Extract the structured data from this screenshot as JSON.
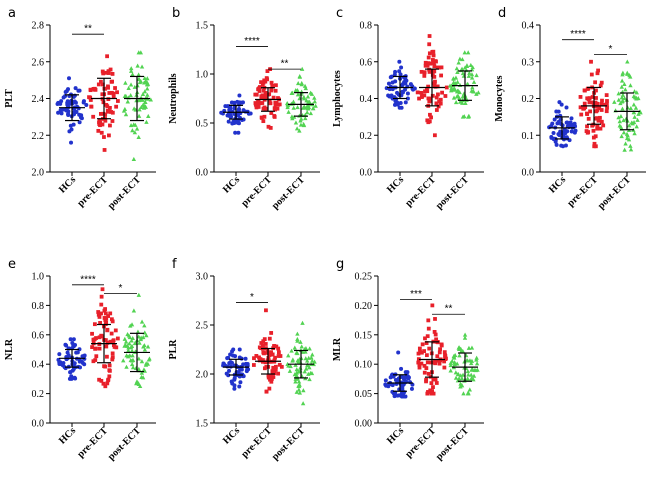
{
  "colors": {
    "HCs": "#2233cc",
    "pre-ECT": "#e8202a",
    "post-ECT": "#52d352"
  },
  "chart_data": [
    {
      "type": "scatter",
      "letter": "a",
      "ylabel": "PLT",
      "categories": [
        "HCs",
        "pre-ECT",
        "post-ECT"
      ],
      "ylim": [
        2.0,
        2.8
      ],
      "yticks": [
        2.0,
        2.2,
        2.4,
        2.6,
        2.8
      ],
      "yticklabels": [
        "2.0",
        "2.2",
        "2.4",
        "2.6",
        "2.8"
      ],
      "groups": [
        {
          "name": "HCs",
          "mean": 2.35,
          "sd": 0.07,
          "min": 2.16,
          "max": 2.51,
          "n": 60
        },
        {
          "name": "pre-ECT",
          "mean": 2.4,
          "sd": 0.11,
          "min": 2.12,
          "max": 2.63,
          "n": 70
        },
        {
          "name": "post-ECT",
          "mean": 2.4,
          "sd": 0.12,
          "min": 2.07,
          "max": 2.65,
          "n": 70
        }
      ],
      "significance": [
        {
          "from": 0,
          "to": 1,
          "label": "**",
          "y": 2.75
        }
      ]
    },
    {
      "type": "scatter",
      "letter": "b",
      "ylabel": "Neutrophils",
      "categories": [
        "HCs",
        "pre-ECT",
        "post-ECT"
      ],
      "ylim": [
        0.0,
        1.5
      ],
      "yticks": [
        0.0,
        0.5,
        1.0,
        1.5
      ],
      "yticklabels": [
        "0.0",
        "0.5",
        "1.0",
        "1.5"
      ],
      "groups": [
        {
          "name": "HCs",
          "mean": 0.61,
          "sd": 0.07,
          "min": 0.4,
          "max": 0.78,
          "n": 60
        },
        {
          "name": "pre-ECT",
          "mean": 0.74,
          "sd": 0.12,
          "min": 0.45,
          "max": 1.05,
          "n": 70
        },
        {
          "name": "post-ECT",
          "mean": 0.69,
          "sd": 0.12,
          "min": 0.42,
          "max": 1.05,
          "n": 70
        }
      ],
      "significance": [
        {
          "from": 0,
          "to": 1,
          "label": "****",
          "y": 1.28
        },
        {
          "from": 1,
          "to": 2,
          "label": "**",
          "y": 1.05
        }
      ]
    },
    {
      "type": "scatter",
      "letter": "c",
      "ylabel": "Lymphocytes",
      "categories": [
        "HCs",
        "pre-ECT",
        "post-ECT"
      ],
      "ylim": [
        0.0,
        0.8
      ],
      "yticks": [
        0.0,
        0.2,
        0.4,
        0.6,
        0.8
      ],
      "yticklabels": [
        "0.0",
        "0.2",
        "0.4",
        "0.6",
        "0.8"
      ],
      "groups": [
        {
          "name": "HCs",
          "mean": 0.46,
          "sd": 0.06,
          "min": 0.35,
          "max": 0.6,
          "n": 60
        },
        {
          "name": "pre-ECT",
          "mean": 0.46,
          "sd": 0.1,
          "min": 0.2,
          "max": 0.74,
          "n": 70
        },
        {
          "name": "post-ECT",
          "mean": 0.47,
          "sd": 0.08,
          "min": 0.3,
          "max": 0.65,
          "n": 70
        }
      ],
      "significance": []
    },
    {
      "type": "scatter",
      "letter": "d",
      "ylabel": "Monocytes",
      "categories": [
        "HCs",
        "pre-ECT",
        "post-ECT"
      ],
      "ylim": [
        0.0,
        0.4
      ],
      "yticks": [
        0.0,
        0.1,
        0.2,
        0.3,
        0.4
      ],
      "yticklabels": [
        "0.0",
        "0.1",
        "0.2",
        "0.3",
        "0.4"
      ],
      "groups": [
        {
          "name": "HCs",
          "mean": 0.12,
          "sd": 0.03,
          "min": 0.07,
          "max": 0.19,
          "n": 60
        },
        {
          "name": "pre-ECT",
          "mean": 0.18,
          "sd": 0.05,
          "min": 0.07,
          "max": 0.3,
          "n": 70
        },
        {
          "name": "post-ECT",
          "mean": 0.165,
          "sd": 0.05,
          "min": 0.06,
          "max": 0.3,
          "n": 70
        }
      ],
      "significance": [
        {
          "from": 0,
          "to": 1,
          "label": "****",
          "y": 0.36
        },
        {
          "from": 1,
          "to": 2,
          "label": "*",
          "y": 0.32
        }
      ]
    },
    {
      "type": "scatter",
      "letter": "e",
      "ylabel": "NLR",
      "categories": [
        "HCs",
        "pre-ECT",
        "post-ECT"
      ],
      "ylim": [
        0.0,
        1.0
      ],
      "yticks": [
        0.0,
        0.2,
        0.4,
        0.6,
        0.8,
        1.0
      ],
      "yticklabels": [
        "0.0",
        "0.2",
        "0.4",
        "0.6",
        "0.8",
        "1.0"
      ],
      "groups": [
        {
          "name": "HCs",
          "mean": 0.44,
          "sd": 0.06,
          "min": 0.3,
          "max": 0.57,
          "n": 60
        },
        {
          "name": "pre-ECT",
          "mean": 0.54,
          "sd": 0.13,
          "min": 0.25,
          "max": 0.91,
          "n": 70
        },
        {
          "name": "post-ECT",
          "mean": 0.48,
          "sd": 0.13,
          "min": 0.25,
          "max": 0.87,
          "n": 70
        }
      ],
      "significance": [
        {
          "from": 0,
          "to": 1,
          "label": "****",
          "y": 0.94
        },
        {
          "from": 1,
          "to": 2,
          "label": "*",
          "y": 0.88
        }
      ]
    },
    {
      "type": "scatter",
      "letter": "f",
      "ylabel": "PLR",
      "categories": [
        "HCs",
        "pre-ECT",
        "post-ECT"
      ],
      "ylim": [
        1.5,
        3.0
      ],
      "yticks": [
        1.5,
        2.0,
        2.5,
        3.0
      ],
      "yticklabels": [
        "1.5",
        "2.0",
        "2.5",
        "3.0"
      ],
      "groups": [
        {
          "name": "HCs",
          "mean": 2.07,
          "sd": 0.08,
          "min": 1.85,
          "max": 2.25,
          "n": 60
        },
        {
          "name": "pre-ECT",
          "mean": 2.13,
          "sd": 0.13,
          "min": 1.82,
          "max": 2.65,
          "n": 70
        },
        {
          "name": "post-ECT",
          "mean": 2.1,
          "sd": 0.14,
          "min": 1.7,
          "max": 2.52,
          "n": 70
        }
      ],
      "significance": [
        {
          "from": 0,
          "to": 1,
          "label": "*",
          "y": 2.73
        }
      ]
    },
    {
      "type": "scatter",
      "letter": "g",
      "ylabel": "MLR",
      "categories": [
        "HCs",
        "pre-ECT",
        "post-ECT"
      ],
      "ylim": [
        0.0,
        0.25
      ],
      "yticks": [
        0.0,
        0.05,
        0.1,
        0.15,
        0.2,
        0.25
      ],
      "yticklabels": [
        "0.00",
        "0.05",
        "0.10",
        "0.15",
        "0.20",
        "0.25"
      ],
      "groups": [
        {
          "name": "HCs",
          "mean": 0.068,
          "sd": 0.014,
          "min": 0.045,
          "max": 0.12,
          "n": 60
        },
        {
          "name": "pre-ECT",
          "mean": 0.108,
          "sd": 0.03,
          "min": 0.05,
          "max": 0.2,
          "n": 70
        },
        {
          "name": "post-ECT",
          "mean": 0.095,
          "sd": 0.024,
          "min": 0.05,
          "max": 0.15,
          "n": 70
        }
      ],
      "significance": [
        {
          "from": 0,
          "to": 1,
          "label": "***",
          "y": 0.21
        },
        {
          "from": 1,
          "to": 2,
          "label": "**",
          "y": 0.185
        }
      ]
    }
  ]
}
